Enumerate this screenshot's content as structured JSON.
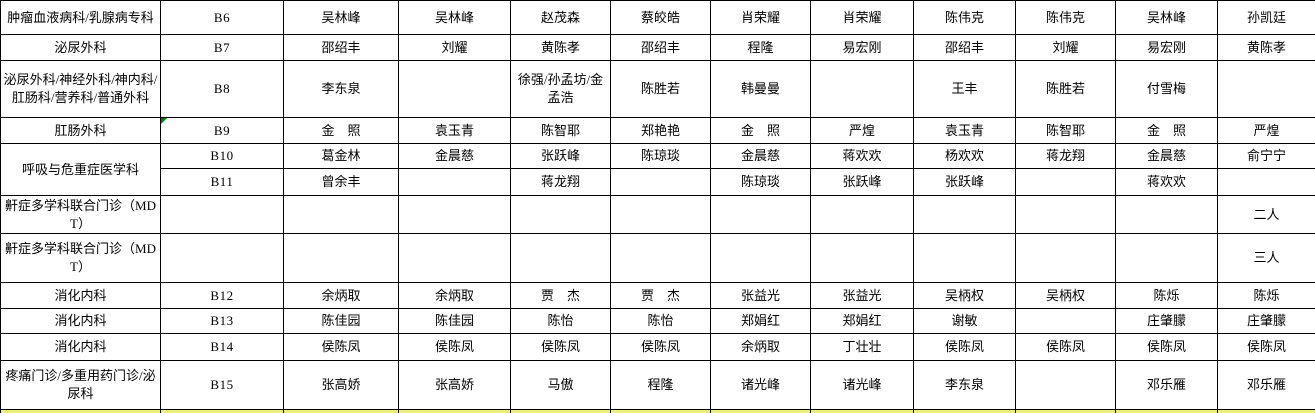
{
  "table": {
    "comment_marker_color": "#008000",
    "grid_color": "#000000",
    "background_color": "#ffffff",
    "partial_bottom_row_color": "#eef07c",
    "rows": [
      {
        "dept": "肿瘤血液病科/乳腺病专科",
        "room": "B6",
        "names": [
          "吴林峰",
          "吴林峰",
          "赵茂森",
          "蔡皎皓",
          "肖荣耀",
          "肖荣耀",
          "陈伟克",
          "陈伟克",
          "吴林峰",
          "孙凯廷"
        ]
      },
      {
        "dept": "泌尿外科",
        "room": "B7",
        "names": [
          "邵绍丰",
          "刘耀",
          "黄陈孝",
          "邵绍丰",
          "程隆",
          "易宏刚",
          "邵绍丰",
          "刘耀",
          "易宏刚",
          "黄陈孝"
        ]
      },
      {
        "dept": "泌尿外科/神经外科/神内科/肛肠科/营养科/普通外科",
        "room": "B8",
        "names": [
          "李东泉",
          "",
          "徐强/孙孟坊/金孟浩",
          "陈胜若",
          "韩曼曼",
          "",
          "王丰",
          "陈胜若",
          "付雪梅",
          ""
        ]
      },
      {
        "dept": "肛肠外科",
        "room": "B9",
        "room_has_comment_marker": true,
        "names": [
          "金　照",
          "袁玉青",
          "陈智耶",
          "郑艳艳",
          "金　照",
          "严煌",
          "袁玉青",
          "陈智耶",
          "金　照",
          "严煌"
        ]
      },
      {
        "dept": "呼吸与危重症医学科",
        "dept_rowspan": 2,
        "room": "B10",
        "names": [
          "葛金林",
          "金晨慈",
          "张跃峰",
          "陈琼琰",
          "金晨慈",
          "蒋欢欢",
          "杨欢欢",
          "蒋龙翔",
          "金晨慈",
          "俞宁宁"
        ]
      },
      {
        "room": "B11",
        "names": [
          "曾余丰",
          "",
          "蒋龙翔",
          "",
          "陈琼琰",
          "张跃峰",
          "张跃峰",
          "",
          "蒋欢欢",
          ""
        ]
      },
      {
        "dept": "鼾症多学科联合门诊（MDT）",
        "room": "",
        "names": [
          "",
          "",
          "",
          "",
          "",
          "",
          "",
          "",
          "",
          "二人"
        ]
      },
      {
        "dept": "鼾症多学科联合门诊（MDT）",
        "room": "",
        "names": [
          "",
          "",
          "",
          "",
          "",
          "",
          "",
          "",
          "",
          "三人"
        ]
      },
      {
        "dept": "消化内科",
        "room": "B12",
        "names": [
          "余炳取",
          "余炳取",
          "贾　杰",
          "贾　杰",
          "张益光",
          "张益光",
          "吴柄权",
          "吴柄权",
          "陈烁",
          "陈烁"
        ]
      },
      {
        "dept": "消化内科",
        "room": "B13",
        "names": [
          "陈佳园",
          "陈佳园",
          "陈怡",
          "陈怡",
          "郑娟红",
          "郑娟红",
          "谢敏",
          "",
          "庄肇朦",
          "庄肇朦"
        ]
      },
      {
        "dept": "消化内科",
        "room": "B14",
        "names": [
          "侯陈凤",
          "侯陈凤",
          "侯陈凤",
          "侯陈凤",
          "余炳取",
          "丁壮壮",
          "侯陈凤",
          "侯陈凤",
          "侯陈凤",
          "侯陈凤"
        ]
      },
      {
        "dept": "疼痛门诊/多重用药门诊/泌尿科",
        "room": "B15",
        "names": [
          "张高娇",
          "张高娇",
          "马傲",
          "程隆",
          "诸光峰",
          "诸光峰",
          "李东泉",
          "",
          "邓乐雁",
          "邓乐雁"
        ]
      }
    ]
  }
}
